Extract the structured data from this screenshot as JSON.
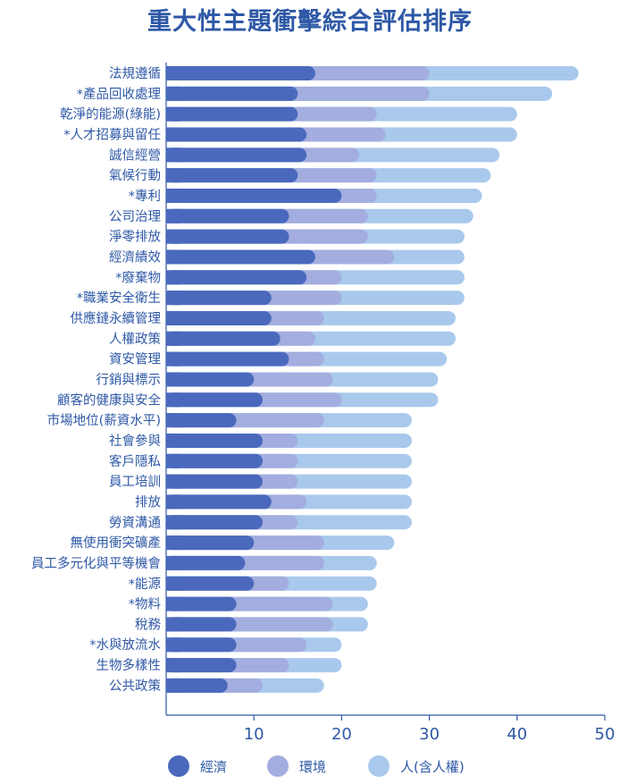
{
  "chart_data": {
    "type": "bar",
    "orientation": "horizontal",
    "stacked": true,
    "title": "重大性主題衝擊綜合評估排序",
    "categories": [
      "法規遵循",
      "*產品回收處理",
      "乾淨的能源(綠能)",
      "*人才招募與留任",
      "誠信經營",
      "氣候行動",
      "*專利",
      "公司治理",
      "淨零排放",
      "經濟績效",
      "*廢棄物",
      "*職業安全衛生",
      "供應鏈永續管理",
      "人權政策",
      "資安管理",
      "行銷與標示",
      "顧客的健康與安全",
      "市場地位(薪資水平)",
      "社會參與",
      "客戶隱私",
      "員工培訓",
      "排放",
      "勞資溝通",
      "無使用衝突礦產",
      "員工多元化與平等機會",
      "*能源",
      "*物料",
      "稅務",
      "*水與放流水",
      "生物多樣性",
      "公共政策"
    ],
    "series": [
      {
        "name": "經濟",
        "color": "#4a69bd",
        "values": [
          17,
          15,
          15,
          16,
          16,
          15,
          20,
          14,
          14,
          17,
          16,
          12,
          12,
          13,
          14,
          10,
          11,
          8,
          11,
          11,
          11,
          12,
          11,
          10,
          9,
          10,
          8,
          8,
          8,
          8,
          7
        ]
      },
      {
        "name": "環境",
        "color": "#a3addf",
        "values": [
          13,
          15,
          9,
          9,
          6,
          9,
          4,
          9,
          9,
          9,
          4,
          8,
          6,
          4,
          4,
          9,
          9,
          10,
          4,
          4,
          4,
          4,
          4,
          8,
          9,
          4,
          11,
          11,
          8,
          6,
          4
        ]
      },
      {
        "name": "人(含人權)",
        "color": "#a9c9ec",
        "values": [
          17,
          14,
          16,
          15,
          16,
          13,
          12,
          12,
          11,
          8,
          14,
          14,
          15,
          16,
          14,
          12,
          11,
          10,
          13,
          13,
          13,
          12,
          13,
          8,
          6,
          10,
          4,
          4,
          4,
          6,
          7
        ]
      }
    ],
    "xlim": [
      0,
      50
    ],
    "xticks": [
      "10",
      "20",
      "30",
      "40",
      "50"
    ],
    "grid": false,
    "legend_position": "bottom"
  }
}
